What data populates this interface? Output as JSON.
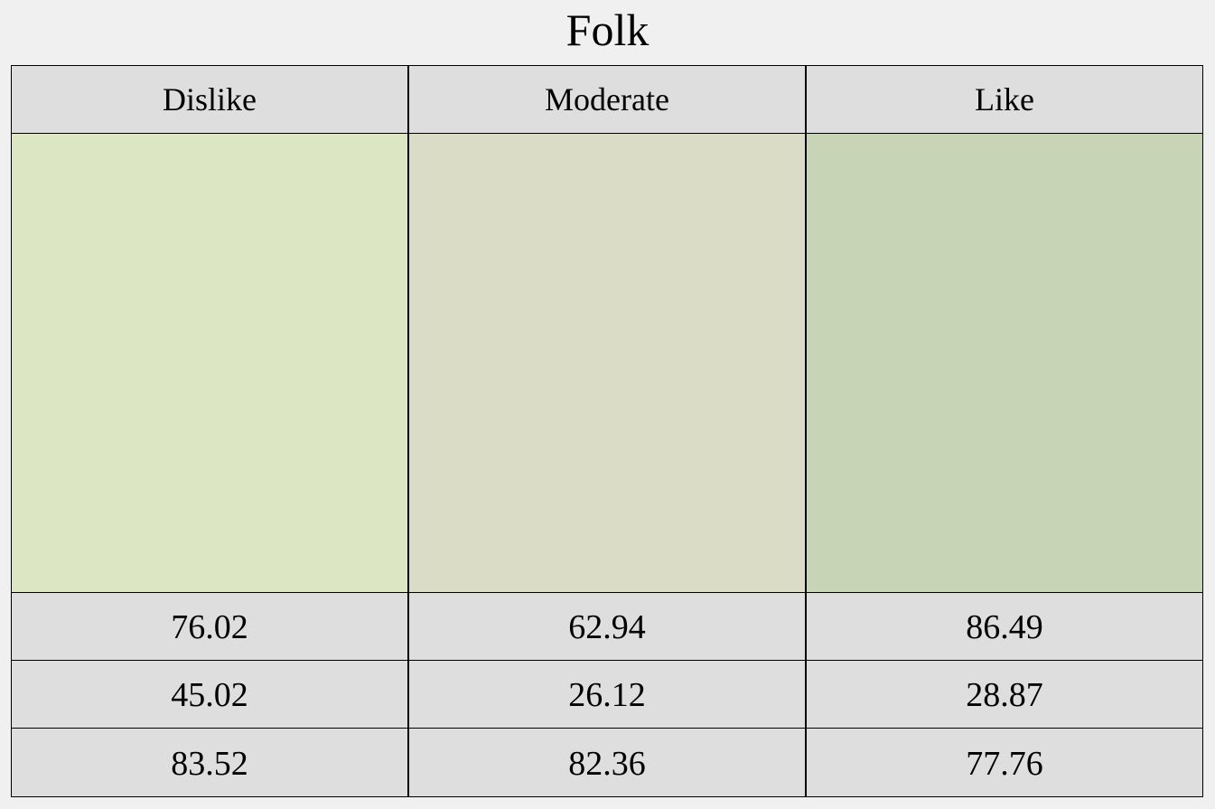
{
  "title": "Folk",
  "columns": [
    {
      "label": "Dislike",
      "color": "#dde6c3",
      "values": [
        "76.02",
        "45.02",
        "83.52"
      ]
    },
    {
      "label": "Moderate",
      "color": "#dbdcc6",
      "values": [
        "62.94",
        "26.12",
        "82.36"
      ]
    },
    {
      "label": "Like",
      "color": "#c7d4b5",
      "values": [
        "86.49",
        "28.87",
        "77.76"
      ]
    }
  ]
}
